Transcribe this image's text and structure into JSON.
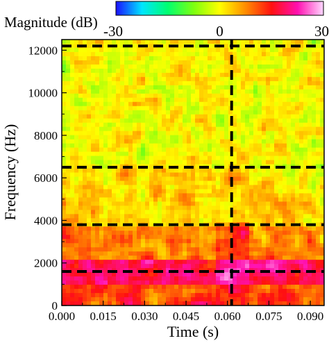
{
  "chart_data": {
    "type": "heatmap",
    "title": "",
    "xlabel": "Time (s)",
    "ylabel": "Frequency (Hz)",
    "xlim": [
      0.0,
      0.095
    ],
    "ylim": [
      0,
      12500
    ],
    "x_ticks": [
      0.0,
      0.015,
      0.03,
      0.045,
      0.06,
      0.075,
      0.09
    ],
    "x_tick_labels": [
      "0.000",
      "0.015",
      "0.030",
      "0.045",
      "0.060",
      "0.075",
      "0.090"
    ],
    "y_ticks": [
      0,
      2000,
      4000,
      6000,
      8000,
      10000,
      12000
    ],
    "y_tick_labels": [
      "0",
      "2000",
      "4000",
      "6000",
      "8000",
      "10000",
      "12000"
    ],
    "colorbar": {
      "label": "Magnitude (dB)",
      "min": -30,
      "max": 30,
      "tick_values": [
        -30,
        0,
        30
      ],
      "tick_labels": [
        "-30",
        "0",
        "30"
      ],
      "colors": [
        "#1a10ff",
        "#00e5ff",
        "#00ff70",
        "#7dff10",
        "#ffff00",
        "#ff8c00",
        "#ff1010",
        "#ff10b0",
        "#ffd8ff"
      ]
    },
    "grid": false,
    "legend": "none",
    "reference_lines": {
      "style": "dashed",
      "color": "#000000",
      "horizontal_hz": [
        1600,
        3800,
        6500,
        12200
      ],
      "vertical_s": [
        0.0615
      ]
    },
    "intensity_regions": [
      {
        "band_hz": [
          0,
          1000
        ],
        "level_db": 12
      },
      {
        "band_hz": [
          1000,
          2200
        ],
        "level_db": 18
      },
      {
        "band_hz": [
          2200,
          3800
        ],
        "level_db": 8
      },
      {
        "band_hz": [
          3800,
          6500
        ],
        "level_db": 2
      },
      {
        "band_hz": [
          6500,
          12500
        ],
        "level_db": 0
      }
    ]
  }
}
